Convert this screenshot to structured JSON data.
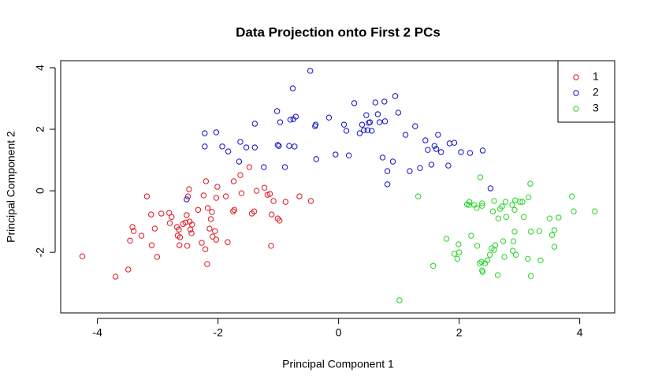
{
  "chart_data": {
    "type": "scatter",
    "title": "Data Projection onto First 2 PCs",
    "x_label": "Principal Component 1",
    "y_label": "Principal Component 2",
    "xlim": [
      -4.61,
      4.58
    ],
    "ylim": [
      -3.97,
      4.23
    ],
    "xticks": [
      -4,
      -2,
      0,
      2,
      4
    ],
    "yticks": [
      -2,
      0,
      2,
      4
    ],
    "legend": "topright",
    "series": [
      {
        "name": "1",
        "color": "#e0141e",
        "x": [
          -4.25,
          -3.7,
          -3.49,
          -3.46,
          -3.42,
          -3.4,
          -3.27,
          -3.18,
          -3.11,
          -3.1,
          -3.01,
          -3.05,
          -2.94,
          -2.81,
          -2.77,
          -2.8,
          -2.68,
          -2.67,
          -2.65,
          -2.64,
          -2.63,
          -2.58,
          -2.52,
          -2.54,
          -2.51,
          -2.5,
          -2.48,
          -2.47,
          -2.46,
          -2.44,
          -2.43,
          -2.33,
          -2.27,
          -2.24,
          -2.21,
          -2.2,
          -2.18,
          -2.17,
          -2.14,
          -2.12,
          -2.1,
          -2.09,
          -2.05,
          -2.03,
          -2.03,
          -2.01,
          -1.87,
          -1.84,
          -1.75,
          -1.73,
          -1.74,
          -1.63,
          -1.61,
          -1.48,
          -1.44,
          -1.4,
          -1.36,
          -1.23,
          -1.18,
          -1.14,
          -1.11,
          -1.08,
          -1.01,
          -0.98,
          -1.12,
          -0.65,
          -0.46,
          -0.88
        ],
        "y": [
          -2.13,
          -2.79,
          -2.56,
          -1.62,
          -1.18,
          -1.31,
          -1.46,
          -0.18,
          -0.77,
          -1.77,
          -2.15,
          -1.23,
          -0.74,
          -0.72,
          -0.85,
          -1.05,
          -1.18,
          -1.46,
          -1.26,
          -1.77,
          -1.51,
          -1.08,
          -0.79,
          -1.03,
          -1.79,
          -0.18,
          0.05,
          -1.0,
          -1.26,
          -1.38,
          -1.1,
          -0.62,
          -1.69,
          -0.15,
          -1.9,
          0.31,
          -2.38,
          -0.56,
          -1.23,
          -0.92,
          -0.69,
          -1.49,
          -1.31,
          -1.59,
          -0.23,
          0.13,
          -0.18,
          -1.67,
          -0.67,
          -0.62,
          0.31,
          0.51,
          -0.08,
          0.77,
          -0.74,
          -0.67,
          0,
          0.1,
          -0.13,
          -0.1,
          -0.77,
          -0.33,
          -0.9,
          -0.97,
          -1.79,
          -0.18,
          -0.33,
          -0.36
        ]
      },
      {
        "name": "2",
        "color": "#1010c8",
        "x": [
          -2.52,
          -2.22,
          -2.22,
          -2.03,
          -1.93,
          -1.83,
          -1.65,
          -1.63,
          -1.53,
          -1.39,
          -1.39,
          -1.24,
          -1.02,
          -1.01,
          -0.99,
          -0.97,
          -0.89,
          -0.82,
          -0.8,
          -0.76,
          -0.75,
          -0.73,
          -0.71,
          -0.47,
          -0.39,
          -0.38,
          -0.37,
          -0.16,
          -0.05,
          0.09,
          0.13,
          0.17,
          0.26,
          0.35,
          0.39,
          0.42,
          0.46,
          0.48,
          0.5,
          0.52,
          0.55,
          0.61,
          0.65,
          0.68,
          0.76,
          0.77,
          0.73,
          0.81,
          0.81,
          0.9,
          0.94,
          0.99,
          1.11,
          1.18,
          1.27,
          1.35,
          1.44,
          1.48,
          1.54,
          1.59,
          1.62,
          1.65,
          1.7,
          1.82,
          1.84,
          1.92,
          2.03,
          2.18,
          2.39,
          2.52
        ],
        "y": [
          -0.28,
          1.87,
          1.44,
          1.9,
          1.44,
          1.28,
          0.95,
          1.59,
          1.41,
          2.18,
          1.41,
          0.77,
          2.59,
          1.49,
          1.46,
          2.23,
          0.77,
          1.46,
          2.31,
          3.33,
          2.33,
          1.44,
          2.41,
          3.9,
          2.1,
          2.15,
          1.03,
          2.38,
          1.18,
          2.15,
          1.95,
          1.15,
          2.85,
          1.87,
          2.15,
          1.97,
          2.46,
          1.97,
          2.21,
          2.23,
          1.95,
          2.87,
          2.49,
          2.23,
          2.9,
          2.26,
          1.08,
          0.64,
          0.21,
          0.95,
          3.08,
          2.54,
          1.82,
          0.64,
          2.1,
          0.74,
          1.64,
          1.33,
          0.85,
          1.46,
          1.36,
          1.82,
          1.26,
          0.82,
          1.54,
          1.56,
          1.26,
          1.23,
          1.31,
          0.08
        ]
      },
      {
        "name": "3",
        "color": "#22d622",
        "x": [
          1.01,
          1.32,
          1.57,
          1.79,
          1.92,
          1.97,
          1.99,
          2.0,
          2.13,
          2.16,
          2.17,
          2.2,
          2.25,
          2.29,
          2.3,
          2.34,
          2.35,
          2.37,
          2.38,
          2.38,
          2.38,
          2.39,
          2.43,
          2.47,
          2.51,
          2.54,
          2.56,
          2.58,
          2.58,
          2.6,
          2.64,
          2.65,
          2.68,
          2.71,
          2.73,
          2.75,
          2.77,
          2.78,
          2.88,
          2.9,
          2.92,
          2.92,
          2.93,
          2.94,
          2.89,
          3.01,
          3.05,
          3.07,
          3.14,
          3.15,
          3.18,
          3.19,
          3.19,
          3.33,
          3.35,
          3.5,
          3.54,
          3.58,
          3.65,
          3.58,
          3.87,
          3.9,
          4.25
        ],
        "y": [
          -3.56,
          -0.18,
          -2.44,
          -1.56,
          -2.05,
          -2.21,
          -1.74,
          -2.0,
          -0.44,
          -0.46,
          -0.36,
          -1.46,
          -0.46,
          -0.56,
          -1.79,
          -2.36,
          0.44,
          -2.31,
          -0.41,
          -0.49,
          -2.59,
          -2.64,
          -2.36,
          -2.26,
          -2.08,
          -1.87,
          -0.67,
          -0.33,
          -1.92,
          -1.77,
          -2.74,
          -0.9,
          -0.59,
          -0.51,
          -1.64,
          -2.15,
          -0.36,
          -0.85,
          -0.46,
          -1.64,
          -0.62,
          -1.33,
          -0.31,
          -2.08,
          -1.95,
          -0.36,
          -0.36,
          -0.85,
          -2.21,
          -0.21,
          0.23,
          -1.33,
          -2.77,
          -1.31,
          -2.26,
          -0.9,
          -1.44,
          -1.28,
          -0.87,
          -1.82,
          -0.18,
          -0.67,
          -0.67
        ]
      }
    ]
  }
}
